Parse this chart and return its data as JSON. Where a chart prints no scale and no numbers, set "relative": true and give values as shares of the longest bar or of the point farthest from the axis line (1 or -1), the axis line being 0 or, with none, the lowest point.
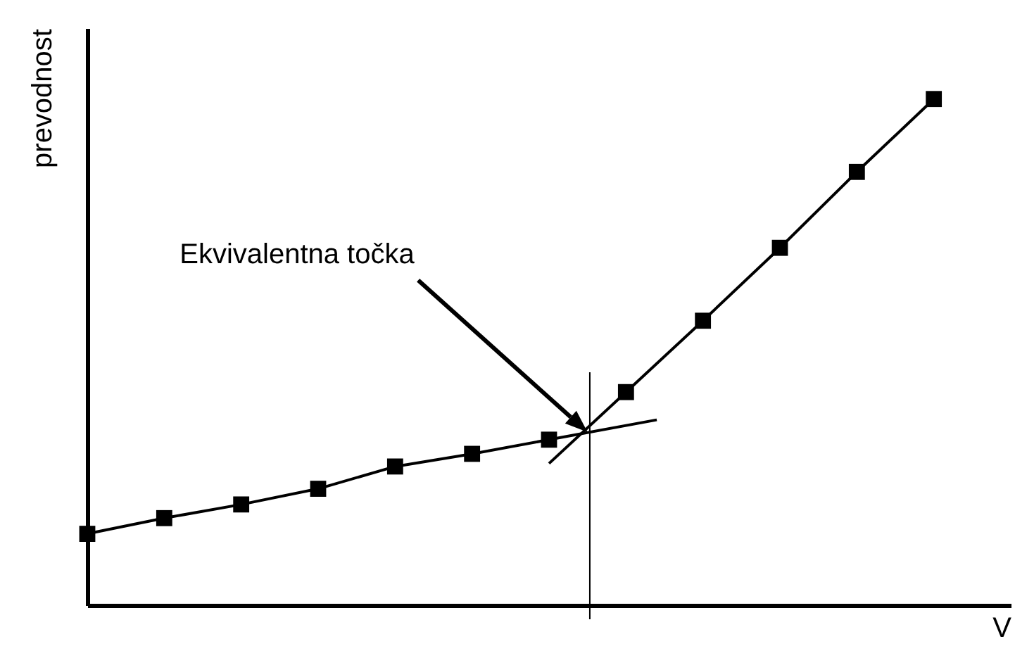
{
  "chart_data": {
    "type": "line",
    "xlabel": "V",
    "ylabel": "prevodnost",
    "relative": true,
    "marker": "square",
    "categories": [
      null,
      null,
      null,
      null,
      null,
      null,
      null,
      null,
      null,
      null,
      null,
      null
    ],
    "series": [
      {
        "color": "#000000",
        "values": [
          0.141,
          0.172,
          0.199,
          0.23,
          0.274,
          0.299,
          0.327,
          null,
          null,
          null,
          null,
          null
        ]
      },
      {
        "color": "#000000",
        "values": [
          null,
          null,
          null,
          null,
          null,
          null,
          null,
          0.421,
          0.562,
          0.706,
          0.856,
          1
        ]
      }
    ],
    "annotations": [
      "Ekvivalentna točka"
    ]
  }
}
